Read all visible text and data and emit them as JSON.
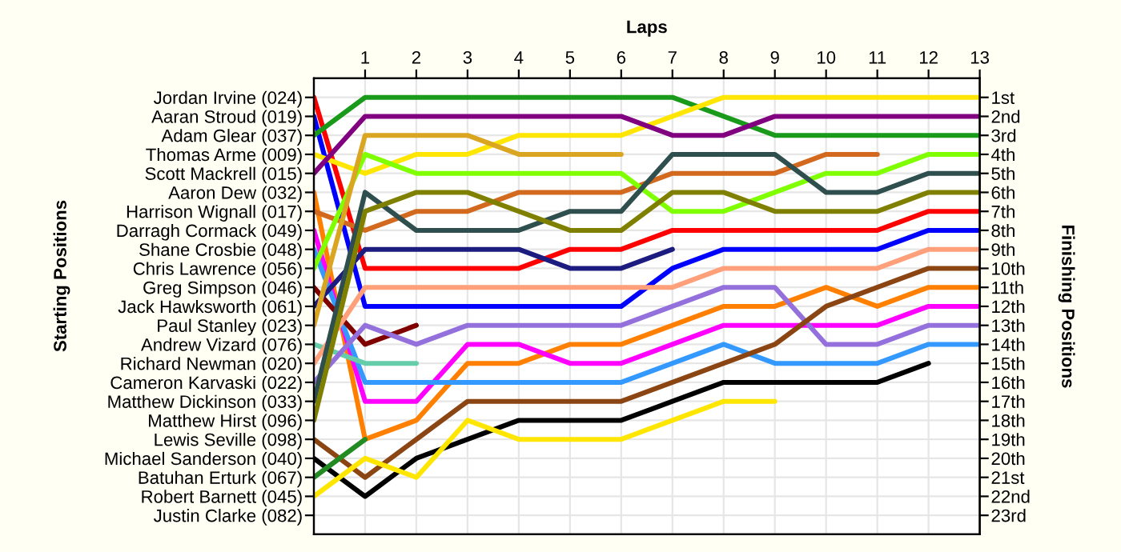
{
  "chart_data": {
    "type": "line",
    "xlabel": "Laps",
    "ylabel": "Finishing Positions",
    "annotations": [
      "Starting Positions"
    ],
    "x": [
      0,
      1,
      2,
      3,
      4,
      5,
      6,
      7,
      8,
      9,
      10,
      11,
      12,
      13
    ],
    "xlim": [
      0,
      13
    ],
    "xticks": [
      1,
      2,
      3,
      4,
      5,
      6,
      7,
      8,
      9,
      10,
      11,
      12,
      13
    ],
    "ylim": [
      24,
      0
    ],
    "y2_categories": [
      "Jordan Irvine (024)",
      "Aaran Stroud (019)",
      "Adam Glear (037)",
      "Thomas Arme (009)",
      "Scott Mackrell (015)",
      "Aaron Dew (032)",
      "Harrison Wignall (017)",
      "Darragh Cormack (049)",
      "Shane Crosbie (048)",
      "Chris Lawrence (056)",
      "Greg Simpson (046)",
      "Jack Hawksworth (061)",
      "Paul Stanley (023)",
      "Andrew Vizard (076)",
      "Richard Newman (020)",
      "Cameron Karvaski (022)",
      "Matthew Dickinson (033)",
      "Matthew Hirst (096)",
      "Lewis Seville (098)",
      "Michael Sanderson (040)",
      "Batuhan Erturk (067)",
      "Robert Barnett (045)",
      "Justin Clarke (082)"
    ],
    "yticks": [
      {
        "value": 1,
        "label": "1st"
      },
      {
        "value": 2,
        "label": "2nd"
      },
      {
        "value": 3,
        "label": "3rd"
      },
      {
        "value": 4,
        "label": "4th"
      },
      {
        "value": 5,
        "label": "5th"
      },
      {
        "value": 6,
        "label": "6th"
      },
      {
        "value": 7,
        "label": "7th"
      },
      {
        "value": 8,
        "label": "8th"
      },
      {
        "value": 9,
        "label": "9th"
      },
      {
        "value": 10,
        "label": "10th"
      },
      {
        "value": 11,
        "label": "11th"
      },
      {
        "value": 12,
        "label": "12th"
      },
      {
        "value": 13,
        "label": "13th"
      },
      {
        "value": 14,
        "label": "14th"
      },
      {
        "value": 15,
        "label": "15th"
      },
      {
        "value": 16,
        "label": "16th"
      },
      {
        "value": 17,
        "label": "17th"
      },
      {
        "value": 18,
        "label": "18th"
      },
      {
        "value": 19,
        "label": "19th"
      },
      {
        "value": 20,
        "label": "20th"
      },
      {
        "value": 21,
        "label": "21st"
      },
      {
        "value": 22,
        "label": "22nd"
      },
      {
        "value": 23,
        "label": "23rd"
      }
    ],
    "grid": true,
    "series": [
      {
        "color": "#ff0000",
        "values": [
          1,
          10,
          10,
          10,
          10,
          9,
          9,
          8,
          8,
          8,
          8,
          8,
          7,
          7
        ]
      },
      {
        "color": "#0000ff",
        "values": [
          2,
          12,
          12,
          12,
          12,
          12,
          12,
          10,
          9,
          9,
          9,
          9,
          8,
          8
        ]
      },
      {
        "color": "#1a9a1a",
        "values": [
          3,
          1,
          1,
          1,
          1,
          1,
          1,
          1,
          2,
          3,
          3,
          3,
          3,
          3
        ]
      },
      {
        "color": "#ffe600",
        "values": [
          4,
          5,
          4,
          4,
          3,
          3,
          3,
          2,
          1,
          1,
          1,
          1,
          1,
          1
        ]
      },
      {
        "color": "#800080",
        "values": [
          5,
          2,
          2,
          2,
          2,
          2,
          2,
          3,
          3,
          2,
          2,
          2,
          2,
          2
        ]
      },
      {
        "color": "#ff8000",
        "values": [
          6,
          19,
          18,
          15,
          15,
          14,
          14,
          13,
          12,
          12,
          11,
          12,
          11,
          11
        ]
      },
      {
        "color": "#d2691e",
        "values": [
          7,
          8,
          7,
          7,
          6,
          6,
          6,
          5,
          5,
          5,
          4,
          4,
          null,
          null
        ]
      },
      {
        "color": "#ff00ff",
        "values": [
          8,
          17,
          17,
          14,
          14,
          15,
          15,
          14,
          13,
          13,
          13,
          13,
          12,
          12
        ]
      },
      {
        "color": "#3399ff",
        "values": [
          9,
          16,
          16,
          16,
          16,
          16,
          16,
          15,
          14,
          15,
          15,
          15,
          14,
          14
        ]
      },
      {
        "color": "#80ff00",
        "values": [
          10,
          4,
          5,
          5,
          5,
          5,
          5,
          7,
          7,
          6,
          5,
          5,
          4,
          4
        ]
      },
      {
        "color": "#800000",
        "values": [
          11,
          14,
          13,
          null,
          null,
          null,
          null,
          null,
          null,
          null,
          null,
          null,
          null,
          null
        ]
      },
      {
        "color": "#1c1c80",
        "values": [
          12,
          9,
          9,
          9,
          9,
          10,
          10,
          9,
          null,
          null,
          null,
          null,
          null,
          null
        ]
      },
      {
        "color": "#daa520",
        "values": [
          13,
          3,
          3,
          3,
          4,
          4,
          4,
          null,
          null,
          null,
          null,
          null,
          null,
          null
        ]
      },
      {
        "color": "#66cdaa",
        "values": [
          14,
          15,
          15,
          null,
          null,
          null,
          null,
          null,
          null,
          null,
          null,
          null,
          null,
          null
        ]
      },
      {
        "color": "#ffa07a",
        "values": [
          15,
          11,
          11,
          11,
          11,
          11,
          11,
          11,
          10,
          10,
          10,
          10,
          9,
          9
        ]
      },
      {
        "color": "#9370db",
        "values": [
          16,
          13,
          14,
          13,
          13,
          13,
          13,
          12,
          11,
          11,
          14,
          14,
          13,
          13
        ]
      },
      {
        "color": "#2f4f4f",
        "values": [
          17,
          6,
          8,
          8,
          8,
          7,
          7,
          4,
          4,
          4,
          6,
          6,
          5,
          5
        ]
      },
      {
        "color": "#808000",
        "values": [
          18,
          7,
          6,
          6,
          7,
          8,
          8,
          6,
          6,
          7,
          7,
          7,
          6,
          6
        ]
      },
      {
        "color": "#8b4513",
        "values": [
          19,
          21,
          19,
          17,
          17,
          17,
          17,
          16,
          15,
          14,
          12,
          11,
          10,
          10
        ]
      },
      {
        "color": "#000000",
        "values": [
          20,
          22,
          20,
          19,
          18,
          18,
          18,
          17,
          16,
          16,
          16,
          16,
          15,
          null
        ]
      },
      {
        "color": "#228b22",
        "values": [
          21,
          19,
          null,
          null,
          null,
          null,
          null,
          null,
          null,
          null,
          null,
          null,
          null,
          null
        ]
      },
      {
        "color": "#ffe600",
        "values": [
          22,
          20,
          21,
          18,
          19,
          19,
          19,
          18,
          17,
          17,
          null,
          null,
          null,
          null
        ]
      }
    ]
  }
}
